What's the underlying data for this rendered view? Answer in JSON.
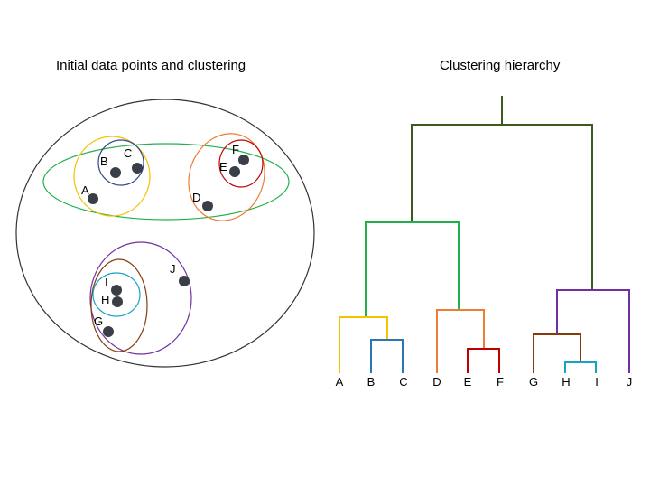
{
  "titles": {
    "left": "Initial data points and clustering",
    "right": "Clustering hierarchy"
  },
  "points": [
    {
      "label": "A"
    },
    {
      "label": "B"
    },
    {
      "label": "C"
    },
    {
      "label": "D"
    },
    {
      "label": "E"
    },
    {
      "label": "F"
    },
    {
      "label": "G"
    },
    {
      "label": "H"
    },
    {
      "label": "I"
    },
    {
      "label": "J"
    }
  ],
  "leaves": [
    "A",
    "B",
    "C",
    "D",
    "E",
    "F",
    "G",
    "H",
    "I",
    "J"
  ],
  "colors": {
    "root": "#3d5a1e",
    "green": "#22b04c",
    "yellow": "#f2c300",
    "blue": "#2e75b6",
    "orange": "#ed7d31",
    "red": "#c00000",
    "purple": "#7030a0",
    "brown": "#843c0c",
    "cyan": "#17a2c8",
    "navy": "#2f4a8a",
    "outer": "#333333",
    "point": "#3a3f47"
  }
}
